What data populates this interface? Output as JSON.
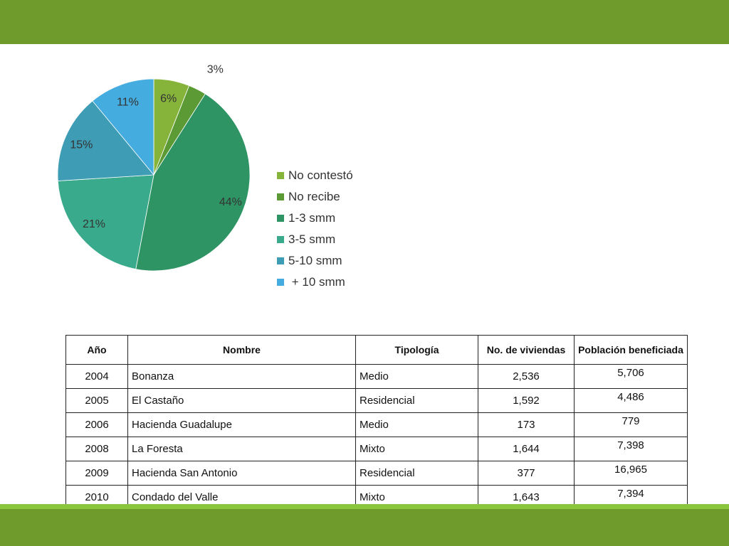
{
  "chart_data": {
    "type": "pie",
    "title": "",
    "slices": [
      {
        "label": "No contestó",
        "value": 6,
        "display": "6%",
        "color": "#86b43a"
      },
      {
        "label": "No recibe",
        "value": 3,
        "display": "3%",
        "color": "#5b9a34"
      },
      {
        "label": "1-3 smm",
        "value": 44,
        "display": "44%",
        "color": "#2e9464"
      },
      {
        "label": "3-5 smm",
        "value": 21,
        "display": "21%",
        "color": "#3aaa8c"
      },
      {
        "label": "5-10 smm",
        "value": 15,
        "display": "15%",
        "color": "#3e9db5"
      },
      {
        "label": " + 10 smm",
        "value": 11,
        "display": "11%",
        "color": "#45acdf"
      }
    ],
    "legend_position": "right"
  },
  "table": {
    "headers": [
      "Año",
      "Nombre",
      "Tipología",
      "No. de viviendas",
      "Población beneficiada"
    ],
    "rows": [
      [
        "2004",
        "Bonanza",
        "Medio",
        "2,536",
        "5,706"
      ],
      [
        "2005",
        "El Castaño",
        "Residencial",
        "1,592",
        "4,486"
      ],
      [
        "2006",
        "Hacienda Guadalupe",
        "Medio",
        "173",
        "779"
      ],
      [
        "2008",
        "La Foresta",
        "Mixto",
        "1,644",
        "7,398"
      ],
      [
        "2009",
        "Hacienda San Antonio",
        "Residencial",
        "377",
        "16,965"
      ],
      [
        "2010",
        "Condado del Valle",
        "Mixto",
        "1,643",
        "7,394"
      ]
    ]
  },
  "colors": {
    "header_bar": "#6f9b2c",
    "footer_band": "#6f9b2c",
    "footer_band_light": "#8cc63f"
  }
}
